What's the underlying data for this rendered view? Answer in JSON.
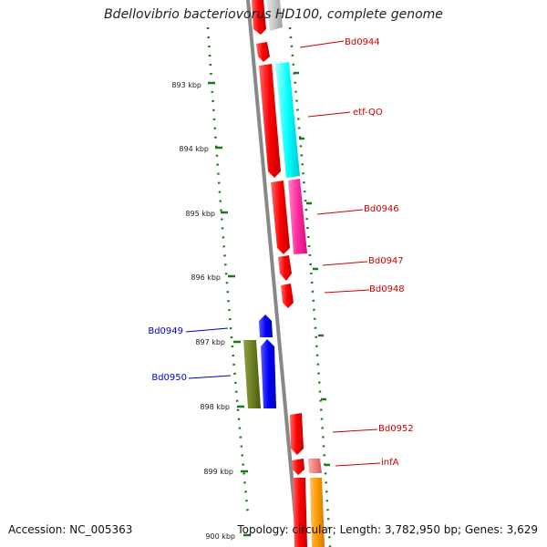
{
  "title": "Bdellovibrio bacteriovorus HD100, complete genome",
  "footer": {
    "accession": "Accession: NC_005363",
    "topology": "Topology: circular; Length: 3,782,950 bp; Genes: 3,629"
  },
  "ticks": [
    "893 kbp",
    "894 kbp",
    "895 kbp",
    "896 kbp",
    "897 kbp",
    "898 kbp",
    "899 kbp",
    "900 kbp"
  ],
  "genes": {
    "Bd0944": "Bd0944",
    "etf_QO": "etf-QO",
    "Bd0946": "Bd0946",
    "Bd0947": "Bd0947",
    "Bd0948": "Bd0948",
    "Bd0949": "Bd0949",
    "Bd0950": "Bd0950",
    "Bd0952": "Bd0952",
    "infA": "infA"
  },
  "colors": {
    "forward_label": "#cc0000",
    "reverse_label": "#0000cc",
    "tick_mark": "#1a7a1a",
    "backbone": "#888888"
  }
}
